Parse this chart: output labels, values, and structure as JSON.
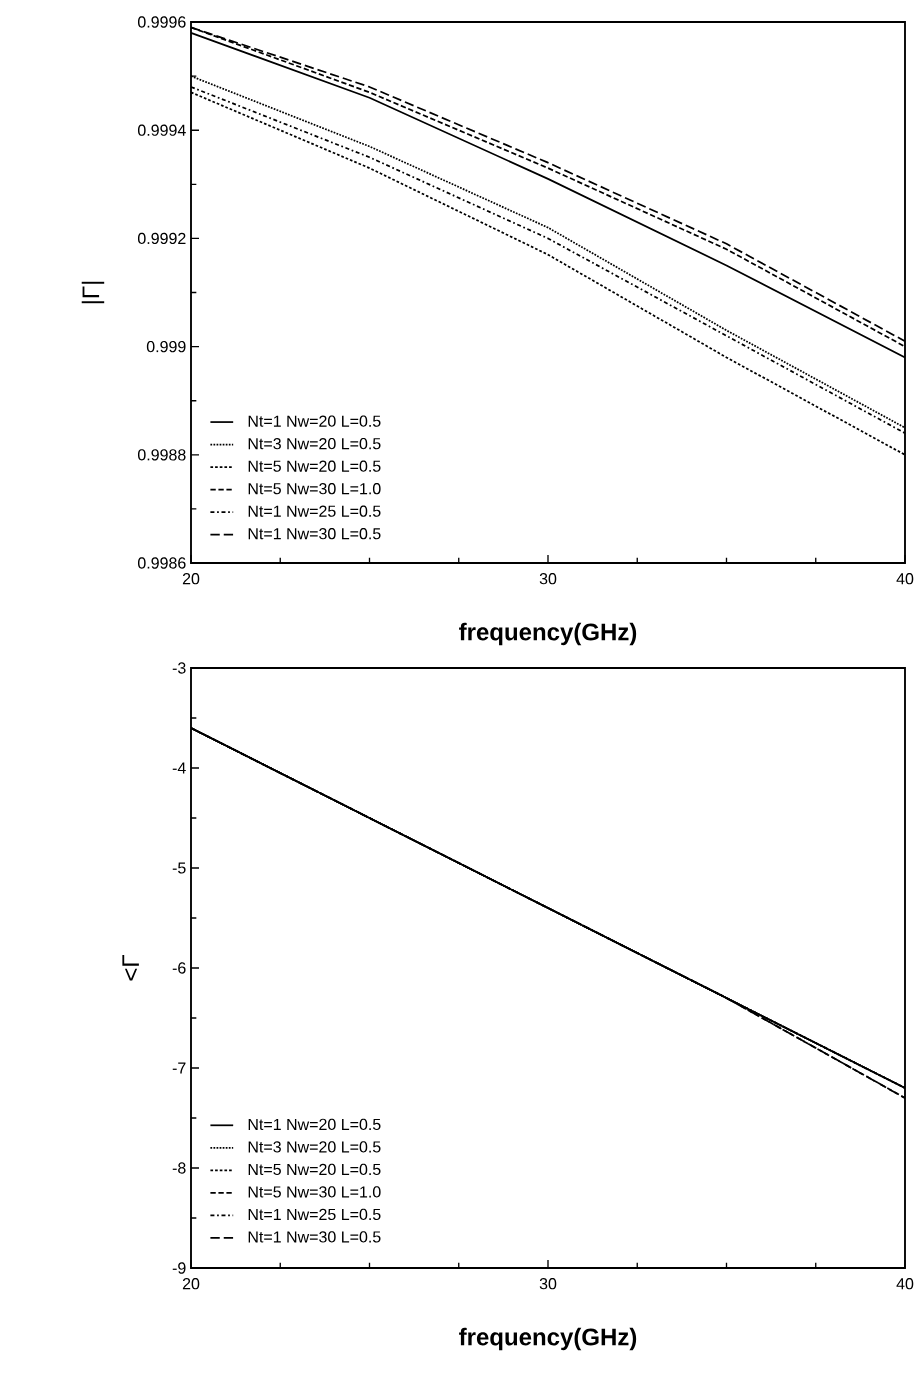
{
  "chart_data": [
    {
      "type": "line",
      "xlabel": "frequency(GHz)",
      "ylabel": "|Γ|",
      "x": [
        20,
        25,
        30,
        35,
        40
      ],
      "xlim": [
        20,
        40
      ],
      "xticks": [
        20,
        30,
        40
      ],
      "ylim": [
        0.9986,
        0.9996
      ],
      "yticks": [
        0.9986,
        0.9988,
        0.999,
        0.9992,
        0.9994,
        0.9996
      ],
      "legend": "bottom left",
      "grid": false,
      "marker": "none",
      "series": [
        {
          "name": "Nt=1 Nw=20 L=0.5",
          "color": "#000000",
          "line_style": "solid",
          "values": [
            0.99958,
            0.99946,
            0.99931,
            0.99915,
            0.99898
          ]
        },
        {
          "name": "Nt=3 Nw=20 L=0.5",
          "color": "#000000",
          "line_style": "dotted",
          "values": [
            0.9995,
            0.99937,
            0.99922,
            0.99903,
            0.99885
          ]
        },
        {
          "name": "Nt=5 Nw=20 L=0.5",
          "color": "#000000",
          "line_style": "densely dashed",
          "values": [
            0.99947,
            0.99933,
            0.99917,
            0.99898,
            0.9988
          ]
        },
        {
          "name": "Nt=5 Nw=30 L=1.0",
          "color": "#000000",
          "line_style": "dashed",
          "values": [
            0.99959,
            0.99947,
            0.99933,
            0.99918,
            0.999
          ]
        },
        {
          "name": "Nt=1 Nw=25 L=0.5",
          "color": "#000000",
          "line_style": "dashdot",
          "values": [
            0.99948,
            0.99935,
            0.9992,
            0.99902,
            0.99884
          ]
        },
        {
          "name": "Nt=1 Nw=30 L=0.5",
          "color": "#000000",
          "line_style": "loosely dashed",
          "values": [
            0.99959,
            0.99948,
            0.99934,
            0.99919,
            0.99901
          ]
        }
      ]
    },
    {
      "type": "line",
      "xlabel": "frequency(GHz)",
      "ylabel": "<Γ",
      "x": [
        20,
        25,
        30,
        35,
        40
      ],
      "xlim": [
        20,
        40
      ],
      "xticks": [
        20,
        30,
        40
      ],
      "ylim": [
        -9,
        -3
      ],
      "yticks": [
        -9,
        -8,
        -7,
        -6,
        -5,
        -4,
        -3
      ],
      "legend": "bottom left",
      "grid": false,
      "marker": "none",
      "series": [
        {
          "name": "Nt=1 Nw=20 L=0.5",
          "color": "#000000",
          "line_style": "solid",
          "values": [
            -3.6,
            -4.5,
            -5.4,
            -6.3,
            -7.2
          ]
        },
        {
          "name": "Nt=3 Nw=20 L=0.5",
          "color": "#000000",
          "line_style": "dotted",
          "values": [
            -3.6,
            -4.5,
            -5.4,
            -6.3,
            -7.2
          ]
        },
        {
          "name": "Nt=5 Nw=20 L=0.5",
          "color": "#000000",
          "line_style": "densely dashed",
          "values": [
            -3.6,
            -4.5,
            -5.4,
            -6.3,
            -7.2
          ]
        },
        {
          "name": "Nt=5 Nw=30 L=1.0",
          "color": "#000000",
          "line_style": "dashed",
          "values": [
            -3.6,
            -4.5,
            -5.4,
            -6.3,
            -7.3
          ]
        },
        {
          "name": "Nt=1 Nw=25 L=0.5",
          "color": "#000000",
          "line_style": "dashdot",
          "values": [
            -3.6,
            -4.5,
            -5.4,
            -6.3,
            -7.2
          ]
        },
        {
          "name": "Nt=1 Nw=30 L=0.5",
          "color": "#000000",
          "line_style": "loosely dashed",
          "values": [
            -3.6,
            -4.5,
            -5.4,
            -6.3,
            -7.3
          ]
        }
      ]
    }
  ]
}
